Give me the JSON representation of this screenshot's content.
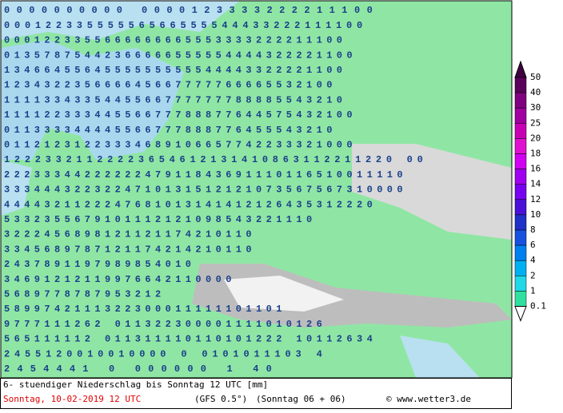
{
  "map": {
    "rows": [
      "       0000000000 0000123333222211100",
      " 00012233555556566555544433222111100",
      "0001223355666666665553333222211100",
      "01357875442366666555554444322221100",
      "1346645564555555555544443322221100",
      "123432235666645667777766665532100",
      "1111334335445566777777788885543210",
      "11112233344556677788877644575432100",
      "011333344445566777888776455543210",
      "01121231223334689106657742233321000",
      "12223321122223654612131410863112211220  00",
      "2223334422222247911843691110116510011110",
      "3334443223224710131512121073567567310000",
      "4444321122247681013141412126435312220",
      "5332355679101112121098543221110",
      "3222456898121121174210110",
      "3345689787121174214210110",
      "2437891197989854010",
      "34691212119976642110000",
      "5689778787953212",
      "5899742111322300011111101101",
      "9777111262 011322300001111010126",
      "565111112 011311110110101222 10112634",
      "2455120010010000 0  0101011103 4",
      "2454441  0    000000   1 40"
    ]
  },
  "legend": {
    "labels": [
      "50",
      "40",
      "30",
      "25",
      "20",
      "18",
      "16",
      "14",
      "12",
      "10",
      "8",
      "6",
      "4",
      "2",
      "1",
      "0.1"
    ]
  },
  "footer": {
    "line1": "6- stuendiger Niederschlag bis Sonntag 12 UTC [mm]",
    "date": "Sonntag, 10-02-2019  12 UTC",
    "model": "(GFS 0.5°)",
    "run": "(Sonntag 06 + 06)",
    "copyright": "© www.wetter3.de"
  }
}
